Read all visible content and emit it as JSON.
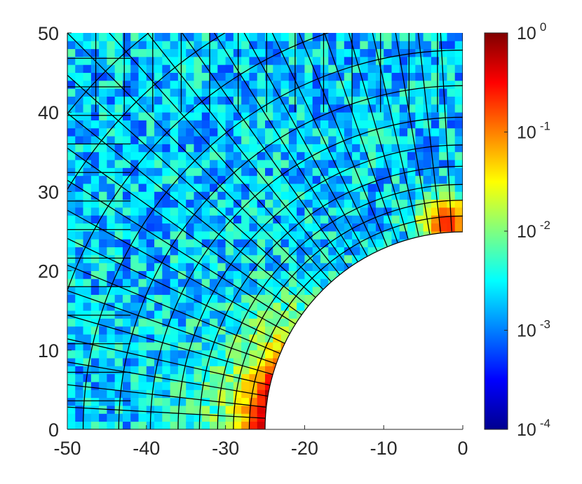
{
  "chart_data": {
    "type": "heatmap",
    "title": "",
    "xlabel": "",
    "ylabel": "",
    "xlim": [
      -50,
      0
    ],
    "ylim": [
      0,
      50
    ],
    "xticks": [
      "-50",
      "-40",
      "-30",
      "-20",
      "-10",
      "0"
    ],
    "yticks": [
      "0",
      "10",
      "20",
      "30",
      "40",
      "50"
    ],
    "hole": {
      "center": [
        0,
        0
      ],
      "radius": 25
    },
    "colorbar": {
      "scale": "log",
      "range": [
        0.0001,
        1
      ],
      "colormap": "jet",
      "ticks": [
        {
          "base": "10",
          "exp": "0"
        },
        {
          "base": "10",
          "exp": "-1"
        },
        {
          "base": "10",
          "exp": "-2"
        },
        {
          "base": "10",
          "exp": "-3"
        },
        {
          "base": "10",
          "exp": "-4"
        }
      ]
    },
    "field": {
      "background_log10": -2.7,
      "hot_region": {
        "description_values": "values near 1e0 at hole edge around x=-25..-30, y=0..12, decaying outward",
        "peak_log10": -0.05,
        "secondary_spot": {
          "x": -2,
          "y": 26,
          "log10": -0.6
        }
      }
    }
  }
}
